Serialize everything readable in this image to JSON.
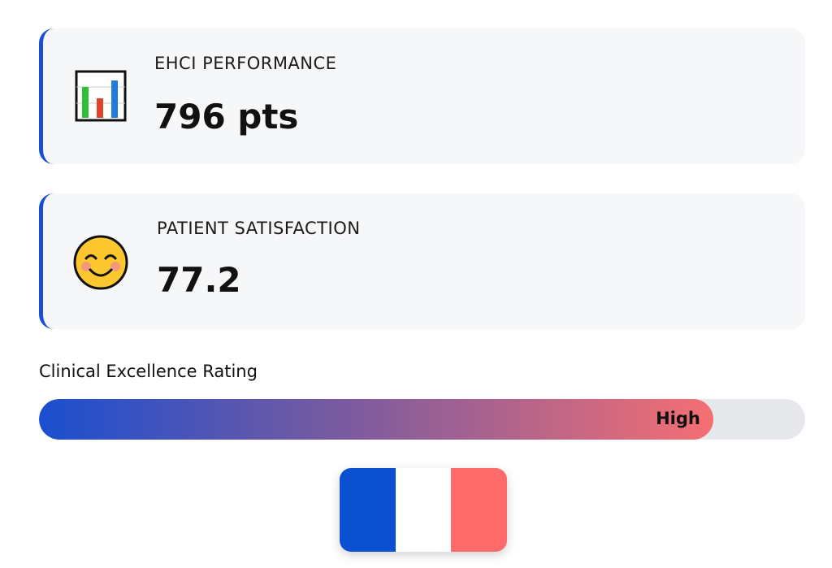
{
  "cards": [
    {
      "label": "EHCI PERFORMANCE",
      "value": "796 pts"
    },
    {
      "label": "PATIENT SATISFACTION",
      "value": "77.2"
    }
  ],
  "rating": {
    "title": "Clinical Excellence Rating",
    "level": "High",
    "fill_percent": 88
  }
}
